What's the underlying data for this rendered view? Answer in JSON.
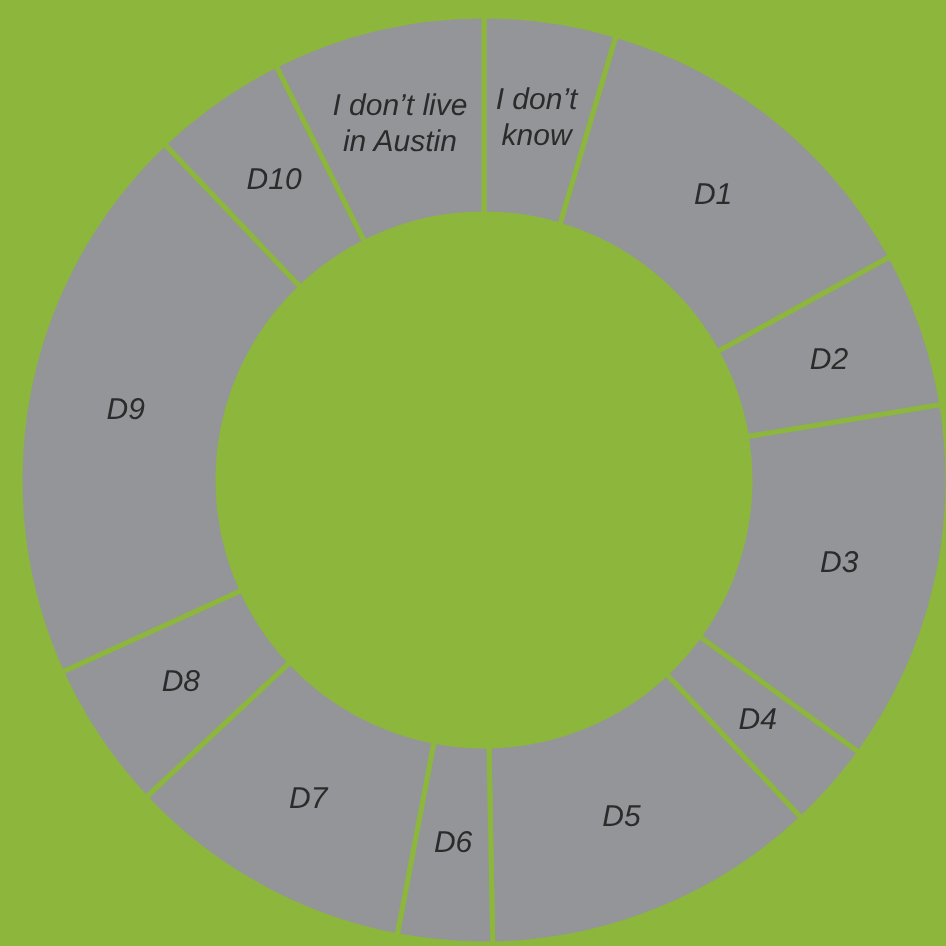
{
  "chart_data": {
    "type": "donut",
    "categories": [
      "I don’t know",
      "D1",
      "D2",
      "D3",
      "D4",
      "D5",
      "D6",
      "D7",
      "D8",
      "D9",
      "D10",
      "I don’t live in Austin"
    ],
    "values": [
      4.6,
      12.4,
      5.4,
      12.6,
      3,
      11.7,
      3.3,
      10,
      5.2,
      19.7,
      4.7,
      7.4
    ],
    "colors": [
      "#939598",
      "#939598",
      "#939598",
      "#939598",
      "#939598",
      "#939598",
      "#939598",
      "#939598",
      "#939598",
      "#939598",
      "#939598",
      "#939598"
    ]
  }
}
